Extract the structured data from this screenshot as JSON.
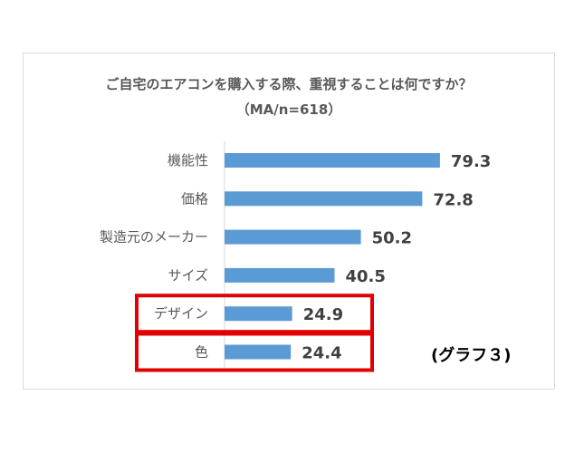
{
  "chart_data": {
    "type": "bar",
    "orientation": "horizontal",
    "title": "ご自宅のエアコンを購入する際、重視することは何ですか？",
    "subtitle": "（MA/n=618）",
    "categories": [
      "機能性",
      "価格",
      "製造元のメーカー",
      "サイズ",
      "デザイン",
      "色"
    ],
    "values": [
      79.3,
      72.8,
      50.2,
      40.5,
      24.9,
      24.4
    ],
    "value_labels": [
      "79.3",
      "72.8",
      "50.2",
      "40.5",
      "24.9",
      "24.4"
    ],
    "xlim": [
      0,
      100
    ],
    "grid": false,
    "legend": "none",
    "bar_color": "#5b9bd5",
    "highlighted_categories": [
      "デザイン",
      "色"
    ],
    "highlight_color": "#e00000"
  },
  "note": "(グラフ３)"
}
